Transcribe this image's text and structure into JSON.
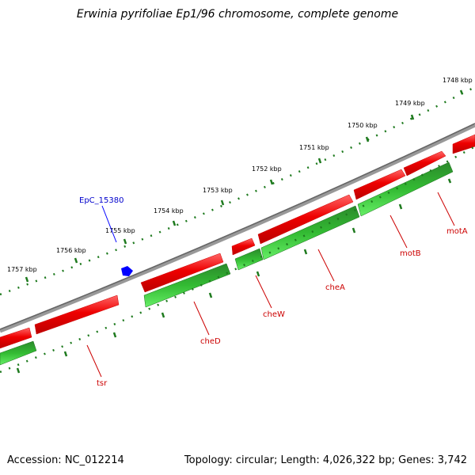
{
  "title": "Erwinia pyrifoliae Ep1/96 chromosome, complete genome",
  "footer": {
    "accession": "Accession: NC_012214",
    "summary": "Topology: circular; Length: 4,026,322 bp; Genes: 3,742"
  },
  "colors": {
    "forward_strand": "#ee0000",
    "reverse_strand": "#22aa22",
    "backbone": "#777777",
    "ticks": "#1e7a1e",
    "feature": "#0000ff",
    "gene_label": "#cc0000"
  },
  "scale_labels": [
    "1748 kbp",
    "1749 kbp",
    "1750 kbp",
    "1751 kbp",
    "1752 kbp",
    "1753 kbp",
    "1754 kbp",
    "1755 kbp",
    "1756 kbp",
    "1757 kbp"
  ],
  "genes": [
    {
      "name": "motA"
    },
    {
      "name": "motB"
    },
    {
      "name": "cheA"
    },
    {
      "name": "cheW"
    },
    {
      "name": "cheD"
    },
    {
      "name": "tsr"
    }
  ],
  "features": [
    {
      "name": "EpC_15380",
      "icon": "pentagon-marker-icon"
    }
  ]
}
